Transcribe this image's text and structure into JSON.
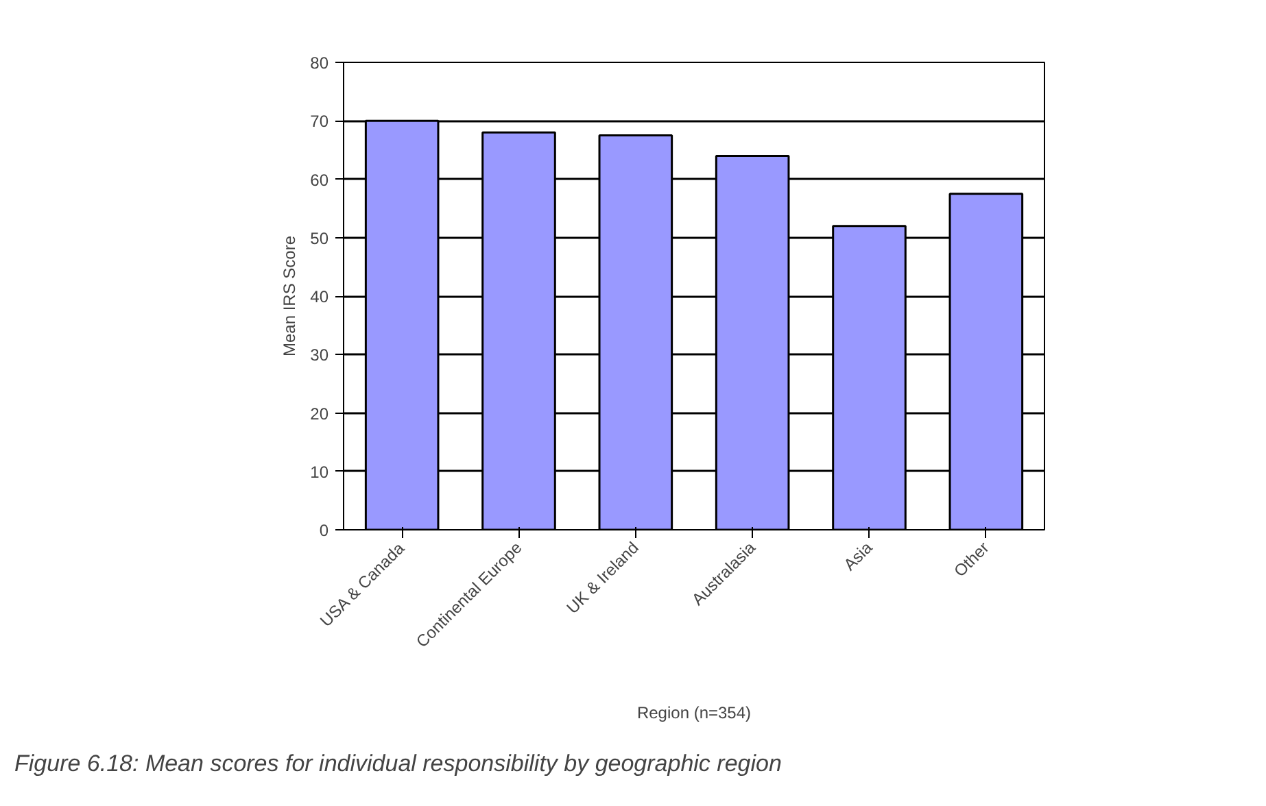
{
  "chart_data": {
    "type": "bar",
    "categories": [
      "USA & Canada",
      "Continental Europe",
      "UK & Ireland",
      "Australasia",
      "Asia",
      "Other"
    ],
    "values": [
      70,
      68,
      67.5,
      64,
      52,
      57.5
    ],
    "color": "#9999ff",
    "xlabel": "Region (n=354)",
    "ylabel": "Mean IRS Score",
    "ylim": [
      0,
      80
    ],
    "yticks": [
      0,
      10,
      20,
      30,
      40,
      50,
      60,
      70,
      80
    ],
    "grid": "y",
    "annotations": [
      "Figure 6.18: Mean scores for individual responsibility by geographic region"
    ]
  }
}
